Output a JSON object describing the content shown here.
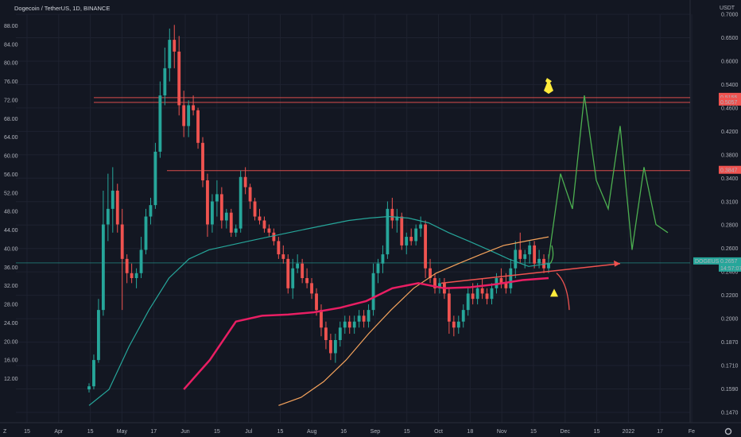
{
  "header": {
    "symbol_title": "Dogecoin / TetherUS, 1D, BINANCE",
    "currency": "USDT"
  },
  "colors": {
    "background": "#131722",
    "grid": "#1e2230",
    "bull": "#26a69a",
    "bear": "#ef5350",
    "ma_teal": "#26a69a",
    "ma_orange": "#f5a35c",
    "ma_pink": "#e91e63",
    "resistance": "#ef5350",
    "support_arrow": "#ef5350",
    "projection": "#4caf50",
    "pin": "#ffeb3b"
  },
  "chart_data": {
    "type": "candlestick",
    "symbol": "Dogecoin / TetherUS",
    "interval": "1D",
    "exchange": "BINANCE",
    "x_ticks": [
      "15",
      "Apr",
      "15",
      "May",
      "17",
      "Jun",
      "15",
      "Jul",
      "15",
      "Aug",
      "16",
      "Sep",
      "15",
      "Oct",
      "18",
      "Nov",
      "15",
      "Dec",
      "15",
      "2022",
      "17",
      "Fe"
    ],
    "left_axis": {
      "scale": "linear",
      "ticks": [
        "88.00",
        "84.00",
        "80.00",
        "76.00",
        "72.00",
        "68.00",
        "64.00",
        "60.00",
        "56.00",
        "52.00",
        "48.00",
        "44.00",
        "40.00",
        "36.00",
        "32.00",
        "28.00",
        "24.00",
        "20.00",
        "16.00",
        "12.00"
      ]
    },
    "right_axis": {
      "scale": "log",
      "unit": "USDT",
      "ticks": [
        "0.7000",
        "0.6500",
        "0.6000",
        "0.5400",
        "0.4600",
        "0.4200",
        "0.3800",
        "0.3400",
        "0.3100",
        "0.2800",
        "0.2600",
        "0.2400",
        "0.2200",
        "0.2000",
        "0.1870",
        "0.1710",
        "0.1590",
        "0.1470"
      ],
      "ylim": [
        0.14,
        0.72
      ]
    },
    "horizontal_lines": [
      {
        "price": 0.5155,
        "label": "0.5155"
      },
      {
        "price": 0.5057,
        "label": "0.5057"
      },
      {
        "price": 0.3847,
        "label": "0.3847"
      },
      {
        "price": 0.2657,
        "label": "0.2657"
      }
    ],
    "last_price": {
      "symbol": "DOGEUSDT",
      "value": "0.2657",
      "countdown": "14:57:07"
    },
    "candles": [
      {
        "t": 0,
        "o": 0.16,
        "h": 0.164,
        "l": 0.158,
        "c": 0.162
      },
      {
        "t": 1,
        "o": 0.162,
        "h": 0.184,
        "l": 0.16,
        "c": 0.18
      },
      {
        "t": 2,
        "o": 0.18,
        "h": 0.23,
        "l": 0.178,
        "c": 0.22
      },
      {
        "t": 3,
        "o": 0.22,
        "h": 0.355,
        "l": 0.215,
        "c": 0.31
      },
      {
        "t": 4,
        "o": 0.31,
        "h": 0.38,
        "l": 0.29,
        "c": 0.33
      },
      {
        "t": 5,
        "o": 0.33,
        "h": 0.39,
        "l": 0.3,
        "c": 0.355
      },
      {
        "t": 6,
        "o": 0.355,
        "h": 0.365,
        "l": 0.3,
        "c": 0.31
      },
      {
        "t": 7,
        "o": 0.31,
        "h": 0.33,
        "l": 0.22,
        "c": 0.27
      },
      {
        "t": 8,
        "o": 0.27,
        "h": 0.275,
        "l": 0.245,
        "c": 0.255
      },
      {
        "t": 9,
        "o": 0.255,
        "h": 0.265,
        "l": 0.245,
        "c": 0.25
      },
      {
        "t": 10,
        "o": 0.25,
        "h": 0.26,
        "l": 0.24,
        "c": 0.255
      },
      {
        "t": 11,
        "o": 0.255,
        "h": 0.295,
        "l": 0.25,
        "c": 0.28
      },
      {
        "t": 12,
        "o": 0.28,
        "h": 0.33,
        "l": 0.275,
        "c": 0.32
      },
      {
        "t": 13,
        "o": 0.32,
        "h": 0.345,
        "l": 0.31,
        "c": 0.335
      },
      {
        "t": 14,
        "o": 0.335,
        "h": 0.43,
        "l": 0.33,
        "c": 0.415
      },
      {
        "t": 15,
        "o": 0.415,
        "h": 0.55,
        "l": 0.405,
        "c": 0.52
      },
      {
        "t": 16,
        "o": 0.52,
        "h": 0.63,
        "l": 0.5,
        "c": 0.58
      },
      {
        "t": 17,
        "o": 0.58,
        "h": 0.68,
        "l": 0.55,
        "c": 0.65
      },
      {
        "t": 18,
        "o": 0.65,
        "h": 0.69,
        "l": 0.58,
        "c": 0.62
      },
      {
        "t": 19,
        "o": 0.62,
        "h": 0.66,
        "l": 0.48,
        "c": 0.5
      },
      {
        "t": 20,
        "o": 0.5,
        "h": 0.53,
        "l": 0.44,
        "c": 0.46
      },
      {
        "t": 21,
        "o": 0.46,
        "h": 0.51,
        "l": 0.44,
        "c": 0.5
      },
      {
        "t": 22,
        "o": 0.5,
        "h": 0.52,
        "l": 0.48,
        "c": 0.49
      },
      {
        "t": 23,
        "o": 0.49,
        "h": 0.495,
        "l": 0.42,
        "c": 0.43
      },
      {
        "t": 24,
        "o": 0.43,
        "h": 0.44,
        "l": 0.36,
        "c": 0.37
      },
      {
        "t": 25,
        "o": 0.37,
        "h": 0.38,
        "l": 0.295,
        "c": 0.31
      },
      {
        "t": 26,
        "o": 0.31,
        "h": 0.35,
        "l": 0.3,
        "c": 0.34
      },
      {
        "t": 27,
        "o": 0.34,
        "h": 0.37,
        "l": 0.32,
        "c": 0.35
      },
      {
        "t": 28,
        "o": 0.35,
        "h": 0.36,
        "l": 0.305,
        "c": 0.315
      },
      {
        "t": 29,
        "o": 0.315,
        "h": 0.33,
        "l": 0.305,
        "c": 0.325
      },
      {
        "t": 30,
        "o": 0.325,
        "h": 0.33,
        "l": 0.295,
        "c": 0.3
      },
      {
        "t": 31,
        "o": 0.3,
        "h": 0.31,
        "l": 0.295,
        "c": 0.305
      },
      {
        "t": 32,
        "o": 0.305,
        "h": 0.385,
        "l": 0.3,
        "c": 0.375
      },
      {
        "t": 33,
        "o": 0.375,
        "h": 0.39,
        "l": 0.35,
        "c": 0.36
      },
      {
        "t": 34,
        "o": 0.36,
        "h": 0.365,
        "l": 0.33,
        "c": 0.34
      },
      {
        "t": 35,
        "o": 0.34,
        "h": 0.345,
        "l": 0.315,
        "c": 0.32
      },
      {
        "t": 36,
        "o": 0.32,
        "h": 0.33,
        "l": 0.31,
        "c": 0.315
      },
      {
        "t": 37,
        "o": 0.315,
        "h": 0.32,
        "l": 0.3,
        "c": 0.305
      },
      {
        "t": 38,
        "o": 0.305,
        "h": 0.31,
        "l": 0.295,
        "c": 0.3
      },
      {
        "t": 39,
        "o": 0.3,
        "h": 0.305,
        "l": 0.285,
        "c": 0.29
      },
      {
        "t": 40,
        "o": 0.29,
        "h": 0.295,
        "l": 0.27,
        "c": 0.275
      },
      {
        "t": 41,
        "o": 0.275,
        "h": 0.285,
        "l": 0.265,
        "c": 0.27
      },
      {
        "t": 42,
        "o": 0.27,
        "h": 0.275,
        "l": 0.235,
        "c": 0.24
      },
      {
        "t": 43,
        "o": 0.24,
        "h": 0.27,
        "l": 0.23,
        "c": 0.26
      },
      {
        "t": 44,
        "o": 0.26,
        "h": 0.275,
        "l": 0.255,
        "c": 0.265
      },
      {
        "t": 45,
        "o": 0.265,
        "h": 0.27,
        "l": 0.245,
        "c": 0.25
      },
      {
        "t": 46,
        "o": 0.25,
        "h": 0.26,
        "l": 0.24,
        "c": 0.245
      },
      {
        "t": 47,
        "o": 0.245,
        "h": 0.25,
        "l": 0.23,
        "c": 0.235
      },
      {
        "t": 48,
        "o": 0.235,
        "h": 0.24,
        "l": 0.215,
        "c": 0.22
      },
      {
        "t": 49,
        "o": 0.22,
        "h": 0.225,
        "l": 0.198,
        "c": 0.205
      },
      {
        "t": 50,
        "o": 0.205,
        "h": 0.21,
        "l": 0.188,
        "c": 0.195
      },
      {
        "t": 51,
        "o": 0.195,
        "h": 0.2,
        "l": 0.18,
        "c": 0.185
      },
      {
        "t": 52,
        "o": 0.185,
        "h": 0.2,
        "l": 0.178,
        "c": 0.195
      },
      {
        "t": 53,
        "o": 0.195,
        "h": 0.21,
        "l": 0.19,
        "c": 0.205
      },
      {
        "t": 54,
        "o": 0.205,
        "h": 0.215,
        "l": 0.2,
        "c": 0.21
      },
      {
        "t": 55,
        "o": 0.21,
        "h": 0.215,
        "l": 0.2,
        "c": 0.205
      },
      {
        "t": 56,
        "o": 0.205,
        "h": 0.215,
        "l": 0.2,
        "c": 0.21
      },
      {
        "t": 57,
        "o": 0.21,
        "h": 0.22,
        "l": 0.205,
        "c": 0.215
      },
      {
        "t": 58,
        "o": 0.215,
        "h": 0.22,
        "l": 0.205,
        "c": 0.21
      },
      {
        "t": 59,
        "o": 0.21,
        "h": 0.225,
        "l": 0.205,
        "c": 0.22
      },
      {
        "t": 60,
        "o": 0.22,
        "h": 0.265,
        "l": 0.215,
        "c": 0.255
      },
      {
        "t": 61,
        "o": 0.255,
        "h": 0.27,
        "l": 0.245,
        "c": 0.265
      },
      {
        "t": 62,
        "o": 0.265,
        "h": 0.285,
        "l": 0.255,
        "c": 0.275
      },
      {
        "t": 63,
        "o": 0.275,
        "h": 0.34,
        "l": 0.27,
        "c": 0.33
      },
      {
        "t": 64,
        "o": 0.33,
        "h": 0.345,
        "l": 0.305,
        "c": 0.315
      },
      {
        "t": 65,
        "o": 0.315,
        "h": 0.33,
        "l": 0.3,
        "c": 0.32
      },
      {
        "t": 66,
        "o": 0.32,
        "h": 0.325,
        "l": 0.28,
        "c": 0.285
      },
      {
        "t": 67,
        "o": 0.285,
        "h": 0.3,
        "l": 0.275,
        "c": 0.295
      },
      {
        "t": 68,
        "o": 0.295,
        "h": 0.305,
        "l": 0.285,
        "c": 0.29
      },
      {
        "t": 69,
        "o": 0.29,
        "h": 0.31,
        "l": 0.285,
        "c": 0.305
      },
      {
        "t": 70,
        "o": 0.305,
        "h": 0.32,
        "l": 0.295,
        "c": 0.31
      },
      {
        "t": 71,
        "o": 0.31,
        "h": 0.315,
        "l": 0.25,
        "c": 0.26
      },
      {
        "t": 72,
        "o": 0.26,
        "h": 0.27,
        "l": 0.245,
        "c": 0.25
      },
      {
        "t": 73,
        "o": 0.25,
        "h": 0.255,
        "l": 0.235,
        "c": 0.24
      },
      {
        "t": 74,
        "o": 0.24,
        "h": 0.25,
        "l": 0.235,
        "c": 0.245
      },
      {
        "t": 75,
        "o": 0.245,
        "h": 0.25,
        "l": 0.23,
        "c": 0.235
      },
      {
        "t": 76,
        "o": 0.235,
        "h": 0.24,
        "l": 0.2,
        "c": 0.21
      },
      {
        "t": 77,
        "o": 0.21,
        "h": 0.215,
        "l": 0.198,
        "c": 0.205
      },
      {
        "t": 78,
        "o": 0.205,
        "h": 0.215,
        "l": 0.2,
        "c": 0.21
      },
      {
        "t": 79,
        "o": 0.21,
        "h": 0.225,
        "l": 0.205,
        "c": 0.22
      },
      {
        "t": 80,
        "o": 0.22,
        "h": 0.24,
        "l": 0.215,
        "c": 0.235
      },
      {
        "t": 81,
        "o": 0.235,
        "h": 0.245,
        "l": 0.225,
        "c": 0.23
      },
      {
        "t": 82,
        "o": 0.23,
        "h": 0.245,
        "l": 0.225,
        "c": 0.24
      },
      {
        "t": 83,
        "o": 0.24,
        "h": 0.25,
        "l": 0.23,
        "c": 0.235
      },
      {
        "t": 84,
        "o": 0.235,
        "h": 0.24,
        "l": 0.225,
        "c": 0.23
      },
      {
        "t": 85,
        "o": 0.23,
        "h": 0.245,
        "l": 0.225,
        "c": 0.24
      },
      {
        "t": 86,
        "o": 0.24,
        "h": 0.255,
        "l": 0.235,
        "c": 0.25
      },
      {
        "t": 87,
        "o": 0.25,
        "h": 0.26,
        "l": 0.24,
        "c": 0.245
      },
      {
        "t": 88,
        "o": 0.245,
        "h": 0.255,
        "l": 0.235,
        "c": 0.24
      },
      {
        "t": 89,
        "o": 0.24,
        "h": 0.27,
        "l": 0.235,
        "c": 0.26
      },
      {
        "t": 90,
        "o": 0.26,
        "h": 0.29,
        "l": 0.25,
        "c": 0.28
      },
      {
        "t": 91,
        "o": 0.28,
        "h": 0.3,
        "l": 0.265,
        "c": 0.27
      },
      {
        "t": 92,
        "o": 0.27,
        "h": 0.28,
        "l": 0.26,
        "c": 0.275
      },
      {
        "t": 93,
        "o": 0.275,
        "h": 0.29,
        "l": 0.265,
        "c": 0.285
      },
      {
        "t": 94,
        "o": 0.285,
        "h": 0.29,
        "l": 0.26,
        "c": 0.265
      },
      {
        "t": 95,
        "o": 0.265,
        "h": 0.28,
        "l": 0.26,
        "c": 0.27
      },
      {
        "t": 96,
        "o": 0.27,
        "h": 0.275,
        "l": 0.255,
        "c": 0.26
      },
      {
        "t": 97,
        "o": 0.26,
        "h": 0.275,
        "l": 0.255,
        "c": 0.2657
      }
    ],
    "moving_averages": [
      {
        "color": "teal",
        "values": [
          0.15,
          0.16,
          0.19,
          0.22,
          0.25,
          0.27,
          0.28,
          0.285,
          0.29,
          0.295,
          0.3,
          0.305,
          0.31,
          0.315,
          0.318,
          0.32,
          0.318,
          0.312,
          0.3,
          0.29,
          0.28,
          0.27,
          0.262,
          0.265
        ]
      },
      {
        "color": "orange",
        "values": [
          0.15,
          0.155,
          0.165,
          0.18,
          0.2,
          0.22,
          0.24,
          0.255,
          0.265,
          0.275,
          0.285,
          0.29,
          0.295
        ]
      },
      {
        "color": "pink",
        "values": [
          0.16,
          0.18,
          0.21,
          0.215,
          0.216,
          0.218,
          0.222,
          0.228,
          0.24,
          0.245,
          0.24,
          0.241,
          0.244,
          0.248,
          0.25
        ]
      }
    ],
    "projection": {
      "color": "green",
      "path": [
        0.27,
        0.38,
        0.33,
        0.52,
        0.37,
        0.33,
        0.46,
        0.28,
        0.39,
        0.31,
        0.3
      ]
    },
    "annotations": [
      {
        "type": "pin",
        "price": 0.52
      },
      {
        "type": "warning",
        "price": 0.235
      },
      {
        "type": "trend-arrow",
        "price_from": 0.245,
        "price_to": 0.265
      },
      {
        "type": "down-arrow",
        "price_from": 0.255,
        "price_to": 0.22
      },
      {
        "type": "up-arrow",
        "price_from": 0.265,
        "price_to": 0.285
      }
    ]
  }
}
